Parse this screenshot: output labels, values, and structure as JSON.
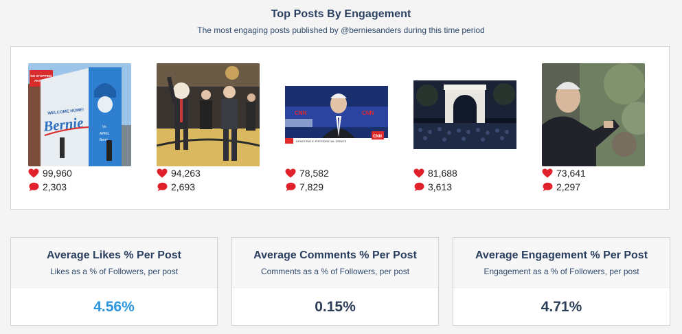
{
  "header": {
    "title": "Top Posts By Engagement",
    "subtitle": "The most engaging posts published by @berniesanders during this time period"
  },
  "posts": [
    {
      "likes": "99,960",
      "comments": "2,303",
      "image": "billboard-welcome-home-bernie"
    },
    {
      "likes": "94,263",
      "comments": "2,693",
      "image": "bernie-with-mascot-basketball-court"
    },
    {
      "likes": "78,582",
      "comments": "7,829",
      "image": "cnn-democratic-presidential-debate"
    },
    {
      "likes": "81,688",
      "comments": "3,613",
      "image": "washington-square-arch-rally"
    },
    {
      "likes": "73,641",
      "comments": "2,297",
      "image": "bernie-speaking-outdoors"
    }
  ],
  "images": {
    "billboard_sign": "NO STOPPING ANYTIME",
    "billboard_welcome": "WELCOME HOME!",
    "billboard_name": "Bernie",
    "billboard_small": "Vo\nAPRIL\nBerni",
    "cnn_logo": "CNN",
    "cnn_banner": "DEMOCRATIC PRESIDENTIAL DEBATE"
  },
  "cards": [
    {
      "title": "Average Likes % Per Post",
      "subtitle": "Likes as a % of Followers, per post",
      "value": "4.56%"
    },
    {
      "title": "Average Comments % Per Post",
      "subtitle": "Comments as a % of Followers, per post",
      "value": "0.15%"
    },
    {
      "title": "Average Engagement % Per Post",
      "subtitle": "Engagement as a % of Followers, per post",
      "value": "4.71%"
    }
  ],
  "colors": {
    "accent": "#2b95e0",
    "heart": "#e0202a",
    "title": "#2a3f5f"
  },
  "icons": {
    "likes": "heart-icon",
    "comments": "speech-bubble-icon"
  }
}
